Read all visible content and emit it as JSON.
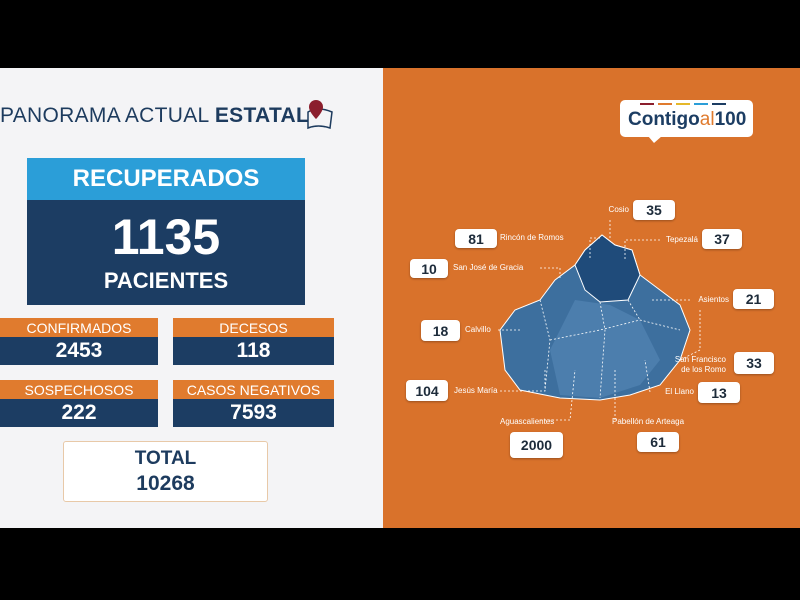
{
  "header": {
    "title_regular": "PANORAMA ACTUAL",
    "title_bold": "ESTATAL"
  },
  "recuperados": {
    "label": "RECUPERADOS",
    "value": 1135,
    "unit": "PACIENTES"
  },
  "stats": [
    {
      "label": "CONFIRMADOS",
      "value": 2453
    },
    {
      "label": "DECESOS",
      "value": 118
    },
    {
      "label": "SOSPECHOSOS",
      "value": 222
    },
    {
      "label": "CASOS NEGATIVOS",
      "value": 7593
    }
  ],
  "total": {
    "label": "TOTAL",
    "value": 10268
  },
  "logo": {
    "part1": "Contigo",
    "part2": "al",
    "part3": "100"
  },
  "municipios": [
    {
      "name": "Cosio",
      "value": 35
    },
    {
      "name": "Rincón de Romos",
      "value": 81
    },
    {
      "name": "Tepezalá",
      "value": 37
    },
    {
      "name": "San José de Gracia",
      "value": 10
    },
    {
      "name": "Asientos",
      "value": 21
    },
    {
      "name": "Calvillo",
      "value": 18
    },
    {
      "name": "San Francisco de los Romo",
      "value": 33
    },
    {
      "name": "El Llano",
      "value": 13
    },
    {
      "name": "Jesús María",
      "value": 104
    },
    {
      "name": "Aguascalientes",
      "value": 2000
    },
    {
      "name": "Pabellón de Arteaga",
      "value": 61
    }
  ]
}
